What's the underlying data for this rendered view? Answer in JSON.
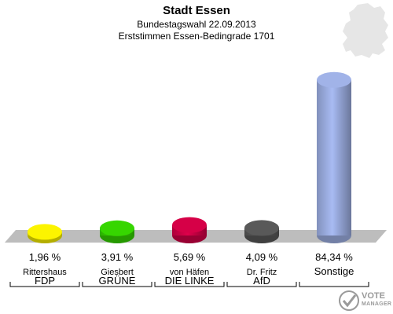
{
  "chart_data": {
    "type": "bar",
    "title": "Stadt Essen",
    "subtitle_lines": [
      "Bundestagswahl 22.09.2013",
      "Erststimmen Essen-Bedingrade 1701"
    ],
    "categories": [
      {
        "candidate": "Rittershaus",
        "party": "FDP"
      },
      {
        "candidate": "Giesbert",
        "party": "GRÜNE"
      },
      {
        "candidate": "von Häfen",
        "party": "DIE LINKE"
      },
      {
        "candidate": "Dr. Fritz",
        "party": "AfD"
      },
      {
        "candidate": "",
        "party": "Sonstige"
      }
    ],
    "values": [
      1.96,
      3.91,
      5.69,
      4.09,
      84.34
    ],
    "value_labels": [
      "1,96 %",
      "3,91 %",
      "5,69 %",
      "4,09 %",
      "84,34 %"
    ],
    "colors": [
      "#f0e800",
      "#33cc00",
      "#cc0044",
      "#555555",
      "#99aadd"
    ],
    "ylim": [
      0,
      100
    ],
    "grid": false,
    "legend": "none"
  },
  "watermark": {
    "line1": "VOTE",
    "line2": "MANAGER"
  }
}
